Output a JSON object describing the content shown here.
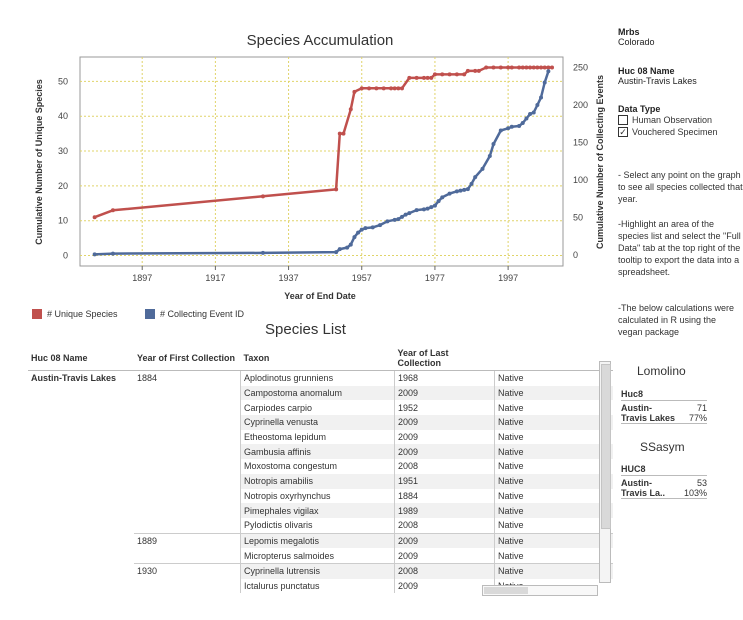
{
  "chart_data": {
    "type": "line",
    "title": "Species Accumulation",
    "xlabel": "Year of End Date",
    "ylabel_left": "Cumulative Number of Unique Species",
    "ylabel_right": "Cumulative Number of Collecting Events",
    "xlim": [
      1880,
      2012
    ],
    "ylim_left": [
      -3,
      57
    ],
    "ylim_right": [
      -14.5,
      264
    ],
    "x_ticks": [
      1897,
      1917,
      1937,
      1957,
      1977,
      1997
    ],
    "y_ticks_left": [
      0,
      10,
      20,
      30,
      40,
      50
    ],
    "y_ticks_right": [
      0,
      50,
      100,
      150,
      200,
      250
    ],
    "series": [
      {
        "name": "# Unique Species",
        "axis": "left",
        "color": "#c0504d",
        "x": [
          1884,
          1889,
          1930,
          1950,
          1951,
          1952,
          1954,
          1955,
          1957,
          1959,
          1961,
          1963,
          1965,
          1966,
          1967,
          1968,
          1970,
          1972,
          1974,
          1975,
          1976,
          1977,
          1979,
          1981,
          1983,
          1985,
          1986,
          1988,
          1989,
          1991,
          1993,
          1995,
          1997,
          1998,
          2000,
          2001,
          2002,
          2003,
          2004,
          2005,
          2006,
          2007,
          2008,
          2009
        ],
        "y": [
          11,
          13,
          17,
          19,
          35,
          35,
          42,
          47,
          48,
          48,
          48,
          48,
          48,
          48,
          48,
          48,
          51,
          51,
          51,
          51,
          51,
          52,
          52,
          52,
          52,
          52,
          53,
          53,
          53,
          54,
          54,
          54,
          54,
          54,
          54,
          54,
          54,
          54,
          54,
          54,
          54,
          54,
          54,
          54
        ]
      },
      {
        "name": "# Collecting Event ID",
        "axis": "right",
        "color": "#4f6a9a",
        "x": [
          1884,
          1889,
          1930,
          1950,
          1951,
          1953,
          1954,
          1955,
          1956,
          1957,
          1958,
          1960,
          1962,
          1964,
          1966,
          1967,
          1968,
          1969,
          1970,
          1972,
          1974,
          1975,
          1976,
          1977,
          1978,
          1979,
          1981,
          1983,
          1984,
          1985,
          1986,
          1987,
          1988,
          1990,
          1992,
          1993,
          1995,
          1997,
          1998,
          2000,
          2001,
          2002,
          2003,
          2004,
          2005,
          2006,
          2007,
          2008
        ],
        "y": [
          1,
          2,
          3,
          4,
          8,
          10,
          14,
          24,
          30,
          34,
          36,
          37,
          40,
          45,
          47,
          48,
          51,
          54,
          56,
          60,
          61,
          62,
          64,
          66,
          72,
          77,
          82,
          85,
          86,
          87,
          88,
          95,
          104,
          115,
          132,
          148,
          166,
          169,
          171,
          172,
          176,
          182,
          188,
          190,
          200,
          210,
          230,
          245
        ]
      }
    ],
    "legend": [
      {
        "label": "# Unique Species",
        "color": "#c0504d"
      },
      {
        "label": "# Collecting Event ID",
        "color": "#4f6a9a"
      }
    ],
    "grid": true,
    "legend_position": "bottom-left"
  },
  "filters": {
    "mrbs_label": "Mrbs",
    "mrbs_value": "Colorado",
    "huc_label": "Huc 08 Name",
    "huc_value": "Austin-Travis Lakes",
    "datatype_label": "Data Type",
    "options": [
      {
        "label": "Human Observation",
        "checked": false
      },
      {
        "label": "Vouchered Specimen",
        "checked": true
      }
    ]
  },
  "notes": [
    "- Select any point on the graph to see all species collected that year.",
    "-Highlight an area of the species list and select the \"Full Data\" tab at the top right of the tooltip to export the data into a spreadsheet.",
    "-The below calculations were calculated in R using the vegan package"
  ],
  "species_list": {
    "title": "Species List",
    "headers": [
      "Huc 08 Name",
      "Year of First Collection",
      "Taxon",
      "Year of Last Collection"
    ],
    "huc": "Austin-Travis Lakes",
    "rows": [
      {
        "first": "1884",
        "taxon": "Aplodinotus grunniens",
        "last": "1968",
        "status": "Native"
      },
      {
        "first": "",
        "taxon": "Campostoma anomalum",
        "last": "2009",
        "status": "Native"
      },
      {
        "first": "",
        "taxon": "Carpiodes carpio",
        "last": "1952",
        "status": "Native"
      },
      {
        "first": "",
        "taxon": "Cyprinella venusta",
        "last": "2009",
        "status": "Native"
      },
      {
        "first": "",
        "taxon": "Etheostoma lepidum",
        "last": "2009",
        "status": "Native"
      },
      {
        "first": "",
        "taxon": "Gambusia affinis",
        "last": "2009",
        "status": "Native"
      },
      {
        "first": "",
        "taxon": "Moxostoma congestum",
        "last": "2008",
        "status": "Native"
      },
      {
        "first": "",
        "taxon": "Notropis amabilis",
        "last": "1951",
        "status": "Native"
      },
      {
        "first": "",
        "taxon": "Notropis oxyrhynchus",
        "last": "1884",
        "status": "Native"
      },
      {
        "first": "",
        "taxon": "Pimephales vigilax",
        "last": "1989",
        "status": "Native"
      },
      {
        "first": "",
        "taxon": "Pylodictis olivaris",
        "last": "2008",
        "status": "Native"
      },
      {
        "first": "1889",
        "taxon": "Lepomis megalotis",
        "last": "2009",
        "status": "Native"
      },
      {
        "first": "",
        "taxon": "Micropterus salmoides",
        "last": "2009",
        "status": "Native"
      },
      {
        "first": "1930",
        "taxon": "Cyprinella lutrensis",
        "last": "2008",
        "status": "Native"
      },
      {
        "first": "",
        "taxon": "Ictalurus punctatus",
        "last": "2009",
        "status": "Native"
      }
    ]
  },
  "lomolino": {
    "title": "Lomolino",
    "header": "Huc8",
    "name_line1": "Austin-",
    "name_line2": "Travis Lakes",
    "value": "71",
    "percent": "77%"
  },
  "ssasym": {
    "title": "SSasym",
    "header": "HUC8",
    "name_line1": "Austin-",
    "name_line2": "Travis La..",
    "value": "53",
    "percent": "103%"
  }
}
